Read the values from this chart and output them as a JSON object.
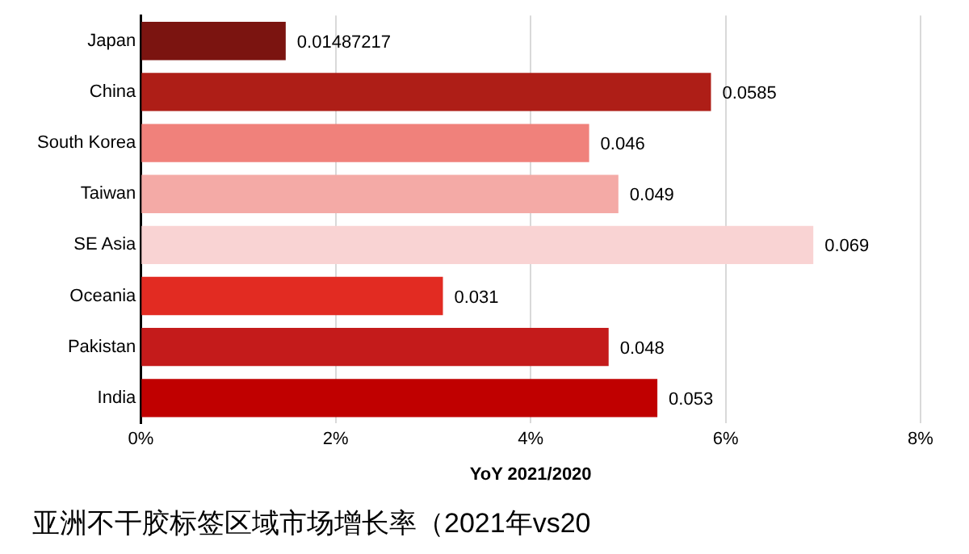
{
  "chart_data": {
    "type": "bar",
    "orientation": "horizontal",
    "title": "亚洲不干胶标签区域市场增长率（2021年vs20",
    "xlabel": "YoY 2021/2020",
    "categories": [
      "Japan",
      "China",
      "South Korea",
      "Taiwan",
      "SE Asia",
      "Oceania",
      "Pakistan",
      "India"
    ],
    "values": [
      0.01487217,
      0.0585,
      0.046,
      0.049,
      0.069,
      0.031,
      0.048,
      0.053
    ],
    "colors": [
      "#7b1410",
      "#ae1e17",
      "#f0817b",
      "#f4aaa6",
      "#f9d3d3",
      "#e22b22",
      "#c41b1b",
      "#c00000"
    ],
    "xlim": [
      0,
      0.08
    ],
    "xticks": [
      {
        "value": 0,
        "label": "0%"
      },
      {
        "value": 0.02,
        "label": "2%"
      },
      {
        "value": 0.04,
        "label": "4%"
      },
      {
        "value": 0.06,
        "label": "6%"
      },
      {
        "value": 0.08,
        "label": "8%"
      }
    ],
    "grid": "x",
    "data_labels": true,
    "legend": false
  }
}
